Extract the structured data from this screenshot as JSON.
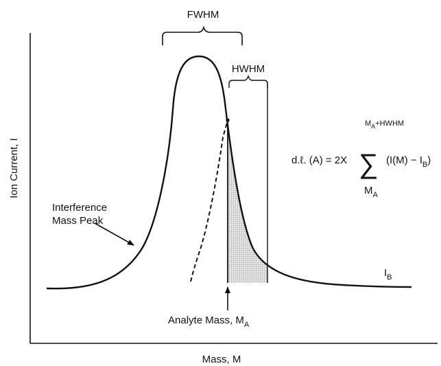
{
  "labels": {
    "fwhm": "FWHM",
    "hwhm": "HWHM",
    "ylabel": "Ion Current, I",
    "xlabel": "Mass, M",
    "interference_line1": "Interference",
    "interference_line2": "Mass Peak",
    "analyte": "Analyte Mass, M",
    "analyte_sub": "A",
    "ib": "I",
    "ib_sub": "B"
  },
  "formula": {
    "lhs": "d.ℓ. (A) = 2X",
    "sum_symbol": "∑",
    "upper_main": "M",
    "upper_sub": "A",
    "upper_suffix": "+HWHM",
    "lower_main": "M",
    "lower_sub": "A",
    "term": "(I(M) − I",
    "term_sub": "B",
    "term_close": ")"
  },
  "colors": {
    "ink": "#111111",
    "shaded_area": "#c8c8c8"
  }
}
